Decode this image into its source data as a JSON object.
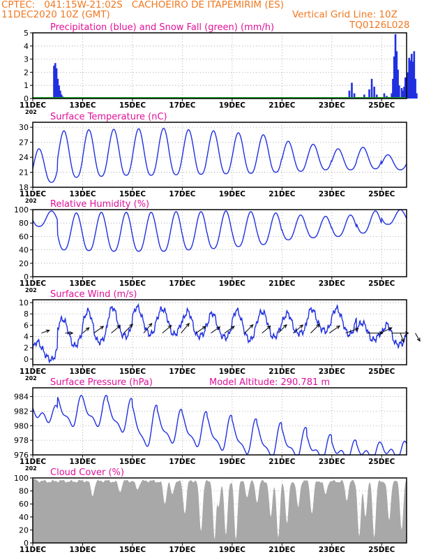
{
  "header": {
    "line1": "CPTEC:   041:15W-21:02S   CACHOEIRO DE ITAPEMIRIM (ES)",
    "line2": "11DEC2020 10Z (GMT)",
    "grid_note": "Vertical Grid Line: 10Z",
    "code": "TQ0126L028"
  },
  "colors": {
    "header": "#f07820",
    "title": "#e0109a",
    "series": "#2030e0",
    "snow": "#10a020",
    "cloud": "#a8a8a8"
  },
  "x_axis": {
    "tick_labels": [
      "11DEC",
      "13DEC",
      "15DEC",
      "17DEC",
      "19DEC",
      "21DEC",
      "23DEC",
      "25DEC"
    ],
    "year_fragment": "202",
    "days_span": 15
  },
  "chart_data": [
    {
      "type": "bar",
      "title": "Precipitation (blue) and Snow Fall (green) (mm/h)",
      "ylim": [
        0,
        5
      ],
      "yticks": [
        "0",
        "1",
        "2",
        "3",
        "4",
        "5"
      ],
      "grid": true,
      "series": [
        {
          "name": "Precipitation",
          "color": "#2030e0",
          "points": [
            [
              0.85,
              2.5
            ],
            [
              0.9,
              2.7
            ],
            [
              0.95,
              2.3
            ],
            [
              1.0,
              1.5
            ],
            [
              1.05,
              1.0
            ],
            [
              1.1,
              0.6
            ],
            [
              1.15,
              0.3
            ],
            [
              1.2,
              0.15
            ],
            [
              12.7,
              0.6
            ],
            [
              12.8,
              1.2
            ],
            [
              12.9,
              0.4
            ],
            [
              13.3,
              0.3
            ],
            [
              13.5,
              0.7
            ],
            [
              13.6,
              1.5
            ],
            [
              13.7,
              0.9
            ],
            [
              13.8,
              0.3
            ],
            [
              14.1,
              0.4
            ],
            [
              14.2,
              0.2
            ],
            [
              14.4,
              0.4
            ],
            [
              14.45,
              1.5
            ],
            [
              14.5,
              3.2
            ],
            [
              14.55,
              4.9
            ],
            [
              14.6,
              3.6
            ],
            [
              14.65,
              2.2
            ],
            [
              14.7,
              1.0
            ],
            [
              14.8,
              0.8
            ],
            [
              14.85,
              0.6
            ],
            [
              14.9,
              0.9
            ],
            [
              14.95,
              1.6
            ],
            [
              15.0,
              0.5
            ],
            [
              15.05,
              2.0
            ],
            [
              15.1,
              3.1
            ],
            [
              15.15,
              2.9
            ],
            [
              15.2,
              3.4
            ],
            [
              15.25,
              2.8
            ],
            [
              15.3,
              3.6
            ],
            [
              15.35,
              1.5
            ],
            [
              15.4,
              0.4
            ]
          ]
        },
        {
          "name": "Snow Fall",
          "color": "#10a020",
          "points": []
        }
      ]
    },
    {
      "type": "line",
      "title": "Surface Temperature (nC)",
      "ylim": [
        18,
        31
      ],
      "yticks": [
        "18",
        "21",
        "24",
        "27",
        "30"
      ],
      "grid": true,
      "series": [
        {
          "name": "Surface Temperature",
          "peaks": [
            25.7,
            29.3,
            29.5,
            29.6,
            29.7,
            29.8,
            29.5,
            29.3,
            28.9,
            28.5,
            27.2,
            26.6,
            25.7,
            26.0,
            24.5
          ],
          "troughs": [
            19.0,
            20.0,
            20.2,
            20.4,
            20.4,
            20.5,
            20.6,
            20.7,
            20.8,
            21.0,
            21.2,
            21.5,
            21.5,
            21.7,
            21.5
          ]
        }
      ]
    },
    {
      "type": "line",
      "title": "Relative Humidity (%)",
      "ylim": [
        0,
        100
      ],
      "yticks": [
        "0",
        "20",
        "40",
        "60",
        "80",
        "100"
      ],
      "grid": true,
      "series": [
        {
          "name": "Relative Humidity",
          "highs": [
            98,
            95,
            96,
            96,
            96,
            97,
            97,
            98,
            97,
            95,
            92,
            90,
            92,
            98,
            100
          ],
          "lows": [
            75,
            40,
            39,
            38,
            38,
            38,
            40,
            42,
            45,
            48,
            55,
            58,
            60,
            65,
            78
          ]
        }
      ]
    },
    {
      "type": "line",
      "title": "Surface Wind (m/s)",
      "ylim": [
        -1,
        10.5
      ],
      "yticks": [
        "0",
        "2",
        "4",
        "6",
        "8",
        "10"
      ],
      "grid": true,
      "series": [
        {
          "name": "Surface Wind",
          "highs": [
            3.0,
            7.2,
            8.5,
            9.0,
            9.2,
            9.0,
            8.4,
            8.0,
            8.6,
            8.5,
            8.0,
            8.7,
            9.0,
            6.5,
            6.0
          ],
          "lows": [
            0.0,
            2.5,
            3.0,
            4.0,
            4.5,
            4.5,
            4.0,
            3.8,
            3.5,
            4.0,
            4.5,
            5.0,
            4.5,
            3.5,
            2.5
          ]
        }
      ],
      "vectors": [
        {
          "day": 0.35,
          "dir": 200,
          "len": 1.0
        },
        {
          "day": 1.3,
          "dir": 180,
          "len": 0.9
        },
        {
          "day": 2.0,
          "dir": 220,
          "len": 1.0
        },
        {
          "day": 2.45,
          "dir": 215,
          "len": 1.4
        },
        {
          "day": 3.15,
          "dir": 220,
          "len": 1.4
        },
        {
          "day": 3.65,
          "dir": 225,
          "len": 1.5
        },
        {
          "day": 4.45,
          "dir": 230,
          "len": 1.5
        },
        {
          "day": 5.2,
          "dir": 220,
          "len": 1.4
        },
        {
          "day": 5.95,
          "dir": 230,
          "len": 1.5
        },
        {
          "day": 6.55,
          "dir": 215,
          "len": 1.4
        },
        {
          "day": 7.15,
          "dir": 215,
          "len": 1.3
        },
        {
          "day": 7.7,
          "dir": 215,
          "len": 1.4
        },
        {
          "day": 8.5,
          "dir": 225,
          "len": 1.4
        },
        {
          "day": 9.2,
          "dir": 220,
          "len": 1.3
        },
        {
          "day": 9.85,
          "dir": 225,
          "len": 1.4
        },
        {
          "day": 10.45,
          "dir": 220,
          "len": 1.5
        },
        {
          "day": 11.15,
          "dir": 225,
          "len": 1.5
        },
        {
          "day": 11.9,
          "dir": 215,
          "len": 1.5
        },
        {
          "day": 12.55,
          "dir": 200,
          "len": 1.6
        },
        {
          "day": 13.4,
          "dir": 180,
          "len": 1.9
        },
        {
          "day": 13.95,
          "dir": 205,
          "len": 1.5
        },
        {
          "day": 14.4,
          "dir": 180,
          "len": 2.0
        },
        {
          "day": 14.75,
          "dir": 110,
          "len": 1.1
        },
        {
          "day": 15.35,
          "dir": 120,
          "len": 1.1
        }
      ]
    },
    {
      "type": "line",
      "title": "Surface Pressure (hPa)",
      "note": "Model Altitude: 290.781  m",
      "ylim": [
        976,
        985.2
      ],
      "yticks": [
        "976",
        "978",
        "980",
        "982",
        "984"
      ],
      "grid": true,
      "series": [
        {
          "name": "Surface Pressure",
          "highs": [
            982.2,
            983.7,
            983.7,
            983.3,
            982.4,
            981.8,
            981.5,
            981.0,
            980.5,
            980.0,
            979.3,
            978.3,
            977.5,
            977.2,
            977.3
          ],
          "lows": [
            981.0,
            980.3,
            980.3,
            979.5,
            977.5,
            978.0,
            977.5,
            977.0,
            976.5,
            976.0,
            976.0,
            975.8,
            975.8,
            975.8,
            976.0
          ]
        }
      ]
    },
    {
      "type": "area",
      "title": "Cloud Cover (%)",
      "ylim": [
        0,
        100
      ],
      "yticks": [
        "0",
        "20",
        "40",
        "60",
        "80",
        "100"
      ],
      "grid": true,
      "series": [
        {
          "name": "Cloud Cover",
          "base": 95,
          "dips": [
            {
              "day": 2.4,
              "value": 72
            },
            {
              "day": 3.5,
              "value": 78
            },
            {
              "day": 4.2,
              "value": 82
            },
            {
              "day": 5.3,
              "value": 60
            },
            {
              "day": 5.6,
              "value": 75
            },
            {
              "day": 6.1,
              "value": 45
            },
            {
              "day": 6.75,
              "value": 18
            },
            {
              "day": 7.3,
              "value": 2
            },
            {
              "day": 7.45,
              "value": 55
            },
            {
              "day": 7.75,
              "value": 12
            },
            {
              "day": 8.15,
              "value": 5
            },
            {
              "day": 8.6,
              "value": 70
            },
            {
              "day": 9.0,
              "value": 62
            },
            {
              "day": 9.55,
              "value": 40
            },
            {
              "day": 9.85,
              "value": 8
            },
            {
              "day": 10.2,
              "value": 30
            },
            {
              "day": 10.65,
              "value": 55
            },
            {
              "day": 11.2,
              "value": 45
            },
            {
              "day": 11.75,
              "value": 75
            },
            {
              "day": 12.6,
              "value": 65
            },
            {
              "day": 13.1,
              "value": 10
            },
            {
              "day": 13.35,
              "value": 40
            },
            {
              "day": 13.7,
              "value": 8
            },
            {
              "day": 14.3,
              "value": 35
            },
            {
              "day": 14.8,
              "value": 20
            }
          ]
        }
      ]
    }
  ]
}
